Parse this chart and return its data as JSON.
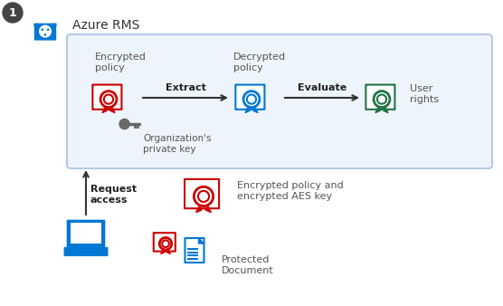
{
  "title": "Azure RMS",
  "bg_color": "#ffffff",
  "box_bg": "#eef4fb",
  "box_border": "#b0cce8",
  "text_color": "#555555",
  "arrow_color": "#333333",
  "rms_blue": "#0078d4",
  "red": "#cc0000",
  "green": "#217346",
  "blue_cert": "#0078d4",
  "gray_key": "#666666",
  "label_enc_policy": "Encrypted\npolicy",
  "label_dec_policy": "Decrypted\npolicy",
  "label_user_rights": "User\nrights",
  "label_extract": "Extract",
  "label_evaluate": "Evaluate",
  "label_org_key": "Organization's\nprivate key",
  "label_request": "Request\naccess",
  "label_enc_policy2": "Encrypted policy and\nencrypted AES key",
  "label_protected": "Protected\nDocument"
}
